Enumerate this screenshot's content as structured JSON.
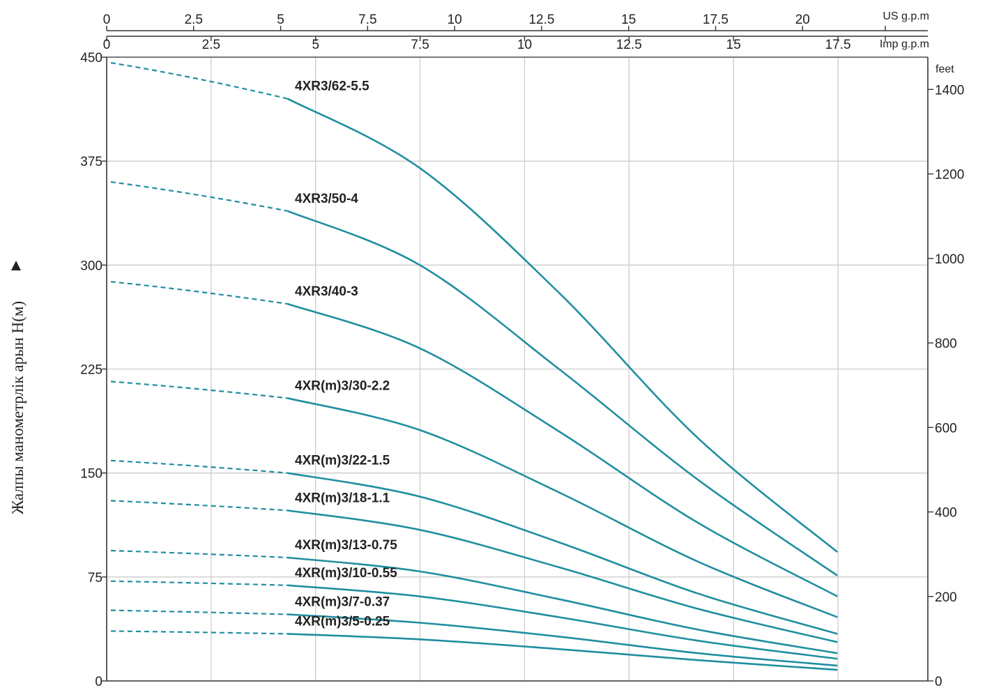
{
  "chart_data": {
    "type": "line",
    "title": "",
    "ylabel": "Жалпы манометрлік арын H(м)",
    "ylim": [
      0,
      450
    ],
    "grid": true,
    "colors": {
      "curve": "#1f8ea0",
      "grid": "#cccccc",
      "axis": "#333333"
    },
    "axes": {
      "top_us": {
        "unit": "US g.p.m",
        "range": [
          0,
          23.6
        ],
        "ticks": [
          "0",
          "2.5",
          "5",
          "7.5",
          "10",
          "12.5",
          "15",
          "17.5",
          "20"
        ]
      },
      "top_imp": {
        "unit": "Imp g.p.m",
        "range": [
          0,
          19.65
        ],
        "ticks": [
          "0",
          "2.5",
          "5",
          "7.5",
          "10",
          "12.5",
          "15",
          "17.5"
        ]
      },
      "left": {
        "ticks": [
          "0",
          "75",
          "150",
          "225",
          "300",
          "375",
          "450"
        ]
      },
      "right_feet": {
        "unit": "feet",
        "ticks": [
          "0",
          "200",
          "400",
          "600",
          "800",
          "1000",
          "1200",
          "1400"
        ]
      }
    },
    "x_unit_axis": "US g.p.m",
    "series": [
      {
        "name": "4XR3/62-5.5",
        "shutoff": 446,
        "x": [
          5.2,
          9,
          13,
          17,
          21
        ],
        "y": [
          420,
          370,
          280,
          175,
          93
        ]
      },
      {
        "name": "4XR3/50-4",
        "shutoff": 360,
        "x": [
          5.2,
          9,
          13,
          17,
          21
        ],
        "y": [
          339,
          300,
          225,
          145,
          76
        ]
      },
      {
        "name": "4XR3/40-3",
        "shutoff": 288,
        "x": [
          5.2,
          9,
          13,
          17,
          21
        ],
        "y": [
          272,
          240,
          180,
          114,
          61
        ]
      },
      {
        "name": "4XR(m)3/30-2.2",
        "shutoff": 216,
        "x": [
          5.2,
          9,
          13,
          17,
          21
        ],
        "y": [
          204,
          181,
          136,
          86,
          46
        ]
      },
      {
        "name": "4XR(m)3/22-1.5",
        "shutoff": 159,
        "x": [
          5.2,
          9,
          13,
          17,
          21
        ],
        "y": [
          150,
          133,
          100,
          63,
          34
        ]
      },
      {
        "name": "4XR(m)3/18-1.1",
        "shutoff": 130,
        "x": [
          5.2,
          9,
          13,
          17,
          21
        ],
        "y": [
          123,
          109,
          82,
          52,
          28
        ]
      },
      {
        "name": "4XR(m)3/13-0.75",
        "shutoff": 94,
        "x": [
          5.2,
          9,
          13,
          17,
          21
        ],
        "y": [
          89,
          79,
          59,
          37,
          20
        ]
      },
      {
        "name": "4XR(m)3/10-0.55",
        "shutoff": 72,
        "x": [
          5.2,
          9,
          13,
          17,
          21
        ],
        "y": [
          69,
          61,
          46,
          29,
          16
        ]
      },
      {
        "name": "4XR(m)3/7-0.37",
        "shutoff": 51,
        "x": [
          5.2,
          9,
          13,
          17,
          21
        ],
        "y": [
          48,
          42,
          32,
          20,
          11
        ]
      },
      {
        "name": "4XR(m)3/5-0.25",
        "shutoff": 36,
        "x": [
          5.2,
          9,
          13,
          17,
          21
        ],
        "y": [
          34,
          30,
          23,
          15,
          8
        ]
      }
    ]
  }
}
